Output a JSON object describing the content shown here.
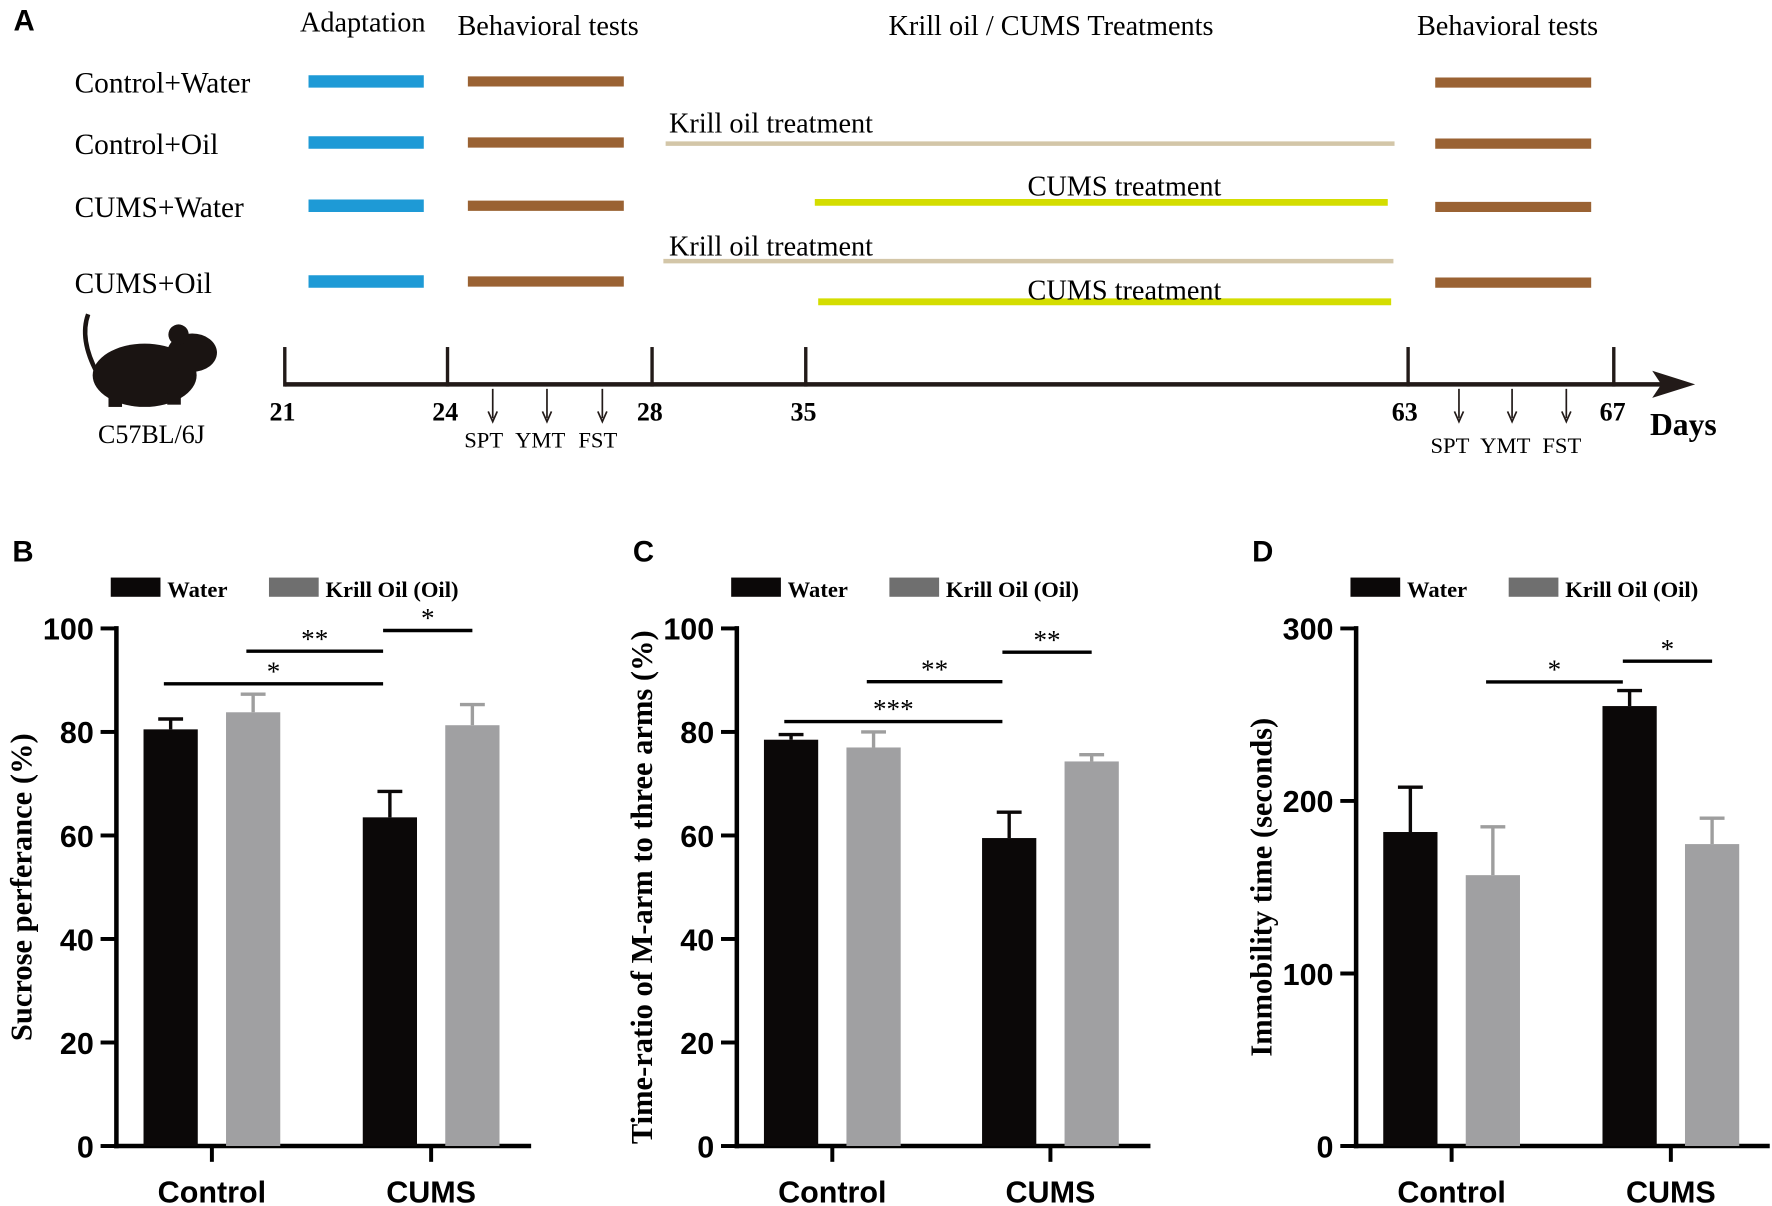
{
  "panel_a": {
    "label": "A",
    "headers": [
      "Adaptation",
      "Behavioral tests",
      "Krill oil / CUMS Treatments",
      "Behavioral tests"
    ],
    "groups": [
      "Control+Water",
      "Control+Oil",
      "CUMS+Water",
      "CUMS+Oil"
    ],
    "treatment_labels": {
      "krill": "Krill oil treatment",
      "cums": "CUMS treatment"
    },
    "days": [
      "21",
      "24",
      "28",
      "35",
      "63",
      "67"
    ],
    "days_label": "Days",
    "tests": [
      "SPT",
      "YMT",
      "FST"
    ],
    "strain": "C57BL/6J",
    "colors": {
      "adaptation": "#1e9ad6",
      "behavior": "#9a6233",
      "krill": "#d3c6a8",
      "cums": "#d4dd00"
    }
  },
  "chart_data": [
    {
      "panel": "B",
      "type": "bar",
      "categories": [
        "Control",
        "CUMS"
      ],
      "legend": [
        "Water",
        "Krill Oil (Oil)"
      ],
      "ylabel": "Sucrose perferance (%)",
      "ylim": [
        0,
        100
      ],
      "yticks": [
        "0",
        "20",
        "40",
        "60",
        "80",
        "100"
      ],
      "series": [
        {
          "name": "Water",
          "values": [
            80.5,
            63.5
          ],
          "errors": [
            2.0,
            5.0
          ],
          "color": "#0b0808"
        },
        {
          "name": "Krill Oil (Oil)",
          "values": [
            83.8,
            81.3
          ],
          "errors": [
            3.5,
            4.0
          ],
          "color": "#a0a0a2"
        }
      ],
      "significance": [
        {
          "from": [
            0,
            0
          ],
          "to": [
            1,
            0
          ],
          "y": 89.3,
          "label": "*"
        },
        {
          "from": [
            0,
            1
          ],
          "to": [
            1,
            0
          ],
          "y": 95.6,
          "label": "**"
        },
        {
          "from": [
            1,
            0
          ],
          "to": [
            1,
            1
          ],
          "y": 99.6,
          "label": "*"
        }
      ]
    },
    {
      "panel": "C",
      "type": "bar",
      "categories": [
        "Control",
        "CUMS"
      ],
      "legend": [
        "Water",
        "Krill Oil (Oil)"
      ],
      "ylabel": "Time-ratio of M-arm to three arms (%)",
      "ylim": [
        0,
        100
      ],
      "yticks": [
        "0",
        "20",
        "40",
        "60",
        "80",
        "100"
      ],
      "series": [
        {
          "name": "Water",
          "values": [
            78.5,
            59.5
          ],
          "errors": [
            1.0,
            5.0
          ],
          "color": "#0b0808"
        },
        {
          "name": "Krill Oil (Oil)",
          "values": [
            77.0,
            74.3
          ],
          "errors": [
            3.0,
            1.3
          ],
          "color": "#a0a0a2"
        }
      ],
      "significance": [
        {
          "from": [
            0,
            0
          ],
          "to": [
            1,
            0
          ],
          "y": 82.0,
          "label": "***"
        },
        {
          "from": [
            0,
            1
          ],
          "to": [
            1,
            0
          ],
          "y": 89.7,
          "label": "**"
        },
        {
          "from": [
            1,
            0
          ],
          "to": [
            1,
            1
          ],
          "y": 95.4,
          "label": "**"
        }
      ]
    },
    {
      "panel": "D",
      "type": "bar",
      "categories": [
        "Control",
        "CUMS"
      ],
      "legend": [
        "Water",
        "Krill Oil (Oil)"
      ],
      "ylabel": "Immobility time (seconds)",
      "ylim": [
        0,
        300
      ],
      "yticks": [
        "0",
        "100",
        "200",
        "300"
      ],
      "series": [
        {
          "name": "Water",
          "values": [
            182,
            255
          ],
          "errors": [
            26,
            9
          ],
          "color": "#0b0808"
        },
        {
          "name": "Krill Oil (Oil)",
          "values": [
            157,
            175
          ],
          "errors": [
            28,
            15
          ],
          "color": "#a0a0a2"
        }
      ],
      "significance": [
        {
          "from": [
            0,
            1
          ],
          "to": [
            1,
            0
          ],
          "y": 269,
          "label": "*"
        },
        {
          "from": [
            1,
            0
          ],
          "to": [
            1,
            1
          ],
          "y": 281,
          "label": "*"
        }
      ]
    }
  ]
}
